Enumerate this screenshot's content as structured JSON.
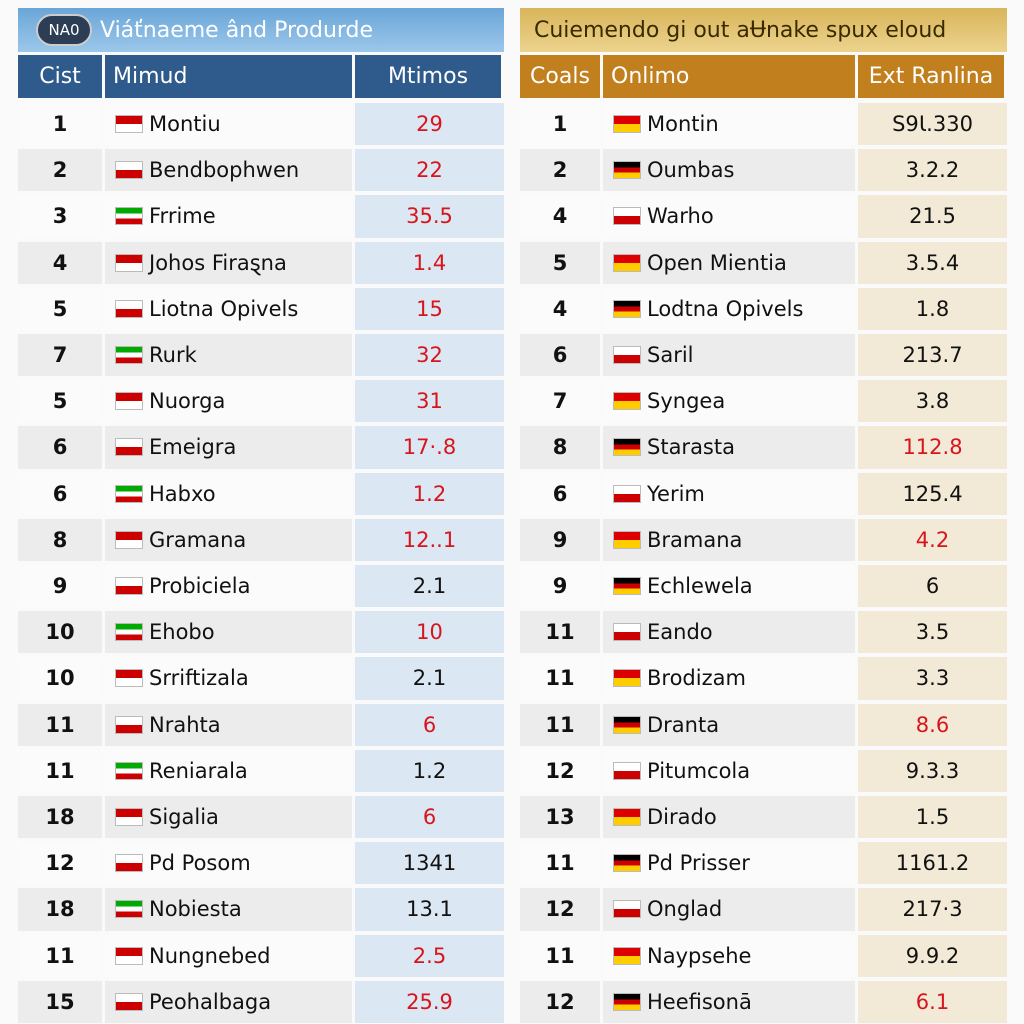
{
  "tables": [
    {
      "badge": "NA0",
      "title": "Viáťnaeme ând Produrde",
      "headers": [
        "Cist",
        "Mimud",
        "Mtimos"
      ],
      "rows": [
        {
          "rank": "1",
          "name": "Montiu",
          "value": "29",
          "highlight": true
        },
        {
          "rank": "2",
          "name": "Bendbophwen",
          "value": "22",
          "highlight": true
        },
        {
          "rank": "3",
          "name": "Frrime",
          "value": "35.5",
          "highlight": true
        },
        {
          "rank": "4",
          "name": "Johos Firaȿna",
          "value": "1.4",
          "highlight": true
        },
        {
          "rank": "5",
          "name": "Liotna Opivels",
          "value": "15",
          "highlight": true
        },
        {
          "rank": "7",
          "name": "Rurk",
          "value": "32",
          "highlight": true
        },
        {
          "rank": "5",
          "name": "Nuorga",
          "value": "31",
          "highlight": true
        },
        {
          "rank": "6",
          "name": "Emeigra",
          "value": "17·.8",
          "highlight": true
        },
        {
          "rank": "6",
          "name": "Habxo",
          "value": "1.2",
          "highlight": true
        },
        {
          "rank": "8",
          "name": "Gramana",
          "value": "12..1",
          "highlight": true
        },
        {
          "rank": "9",
          "name": "Probiciela",
          "value": "2.1",
          "highlight": false
        },
        {
          "rank": "10",
          "name": "Ehobo",
          "value": "10",
          "highlight": true
        },
        {
          "rank": "10",
          "name": "Srriftizala",
          "value": "2.1",
          "highlight": false
        },
        {
          "rank": "11",
          "name": "Nrahta",
          "value": "6",
          "highlight": true
        },
        {
          "rank": "11",
          "name": "Reniarala",
          "value": "1.2",
          "highlight": false
        },
        {
          "rank": "18",
          "name": "Sigalia",
          "value": "6",
          "highlight": true
        },
        {
          "rank": "12",
          "name": "Pd Posom",
          "value": "1341",
          "highlight": false
        },
        {
          "rank": "18",
          "name": "Nobiesta",
          "value": "13.1",
          "highlight": false
        },
        {
          "rank": "11",
          "name": "Nungnebed",
          "value": "2.5",
          "highlight": true
        },
        {
          "rank": "15",
          "name": "Peohalbaga",
          "value": "25.9",
          "highlight": true
        }
      ]
    },
    {
      "title": "Cuiemendo gi out aɄnake spux eloud",
      "headers": [
        "Coals",
        "Onlimo",
        "Ext Ranlina"
      ],
      "rows": [
        {
          "rank": "1",
          "name": "Montin",
          "value": "S9Ɩ.330",
          "highlight": false
        },
        {
          "rank": "2",
          "name": "Oumbas",
          "value": "3.2.2",
          "highlight": false
        },
        {
          "rank": "4",
          "name": "Warho",
          "value": "21.5",
          "highlight": false
        },
        {
          "rank": "5",
          "name": "Open Mientia",
          "value": "3.5.4",
          "highlight": false
        },
        {
          "rank": "4",
          "name": "Lodtna Opivels",
          "value": "1.8",
          "highlight": false
        },
        {
          "rank": "6",
          "name": "Saril",
          "value": "213.7",
          "highlight": false
        },
        {
          "rank": "7",
          "name": "Syngea",
          "value": "3.8",
          "highlight": false
        },
        {
          "rank": "8",
          "name": "Starasta",
          "value": "112.8",
          "highlight": true
        },
        {
          "rank": "6",
          "name": "Yerim",
          "value": "125.4",
          "highlight": false
        },
        {
          "rank": "9",
          "name": "Bramana",
          "value": "4.2",
          "highlight": true
        },
        {
          "rank": "9",
          "name": "Echlewela",
          "value": "6",
          "highlight": false
        },
        {
          "rank": "11",
          "name": "Eando",
          "value": "3.5",
          "highlight": false
        },
        {
          "rank": "11",
          "name": "Brodizam",
          "value": "3.3",
          "highlight": false
        },
        {
          "rank": "11",
          "name": "Dranta",
          "value": "8.6",
          "highlight": true
        },
        {
          "rank": "12",
          "name": "Pitumcola",
          "value": "9.3.3",
          "highlight": false
        },
        {
          "rank": "13",
          "name": "Dirado",
          "value": "1.5",
          "highlight": false
        },
        {
          "rank": "11",
          "name": "Pd Prisser",
          "value": "1161.2",
          "highlight": false
        },
        {
          "rank": "12",
          "name": "Onglad",
          "value": "217·3",
          "highlight": false
        },
        {
          "rank": "11",
          "name": "Naypsehe",
          "value": "9.9.2",
          "highlight": false
        },
        {
          "rank": "12",
          "name": "Heefisonā",
          "value": "6.1",
          "highlight": true
        }
      ]
    }
  ]
}
